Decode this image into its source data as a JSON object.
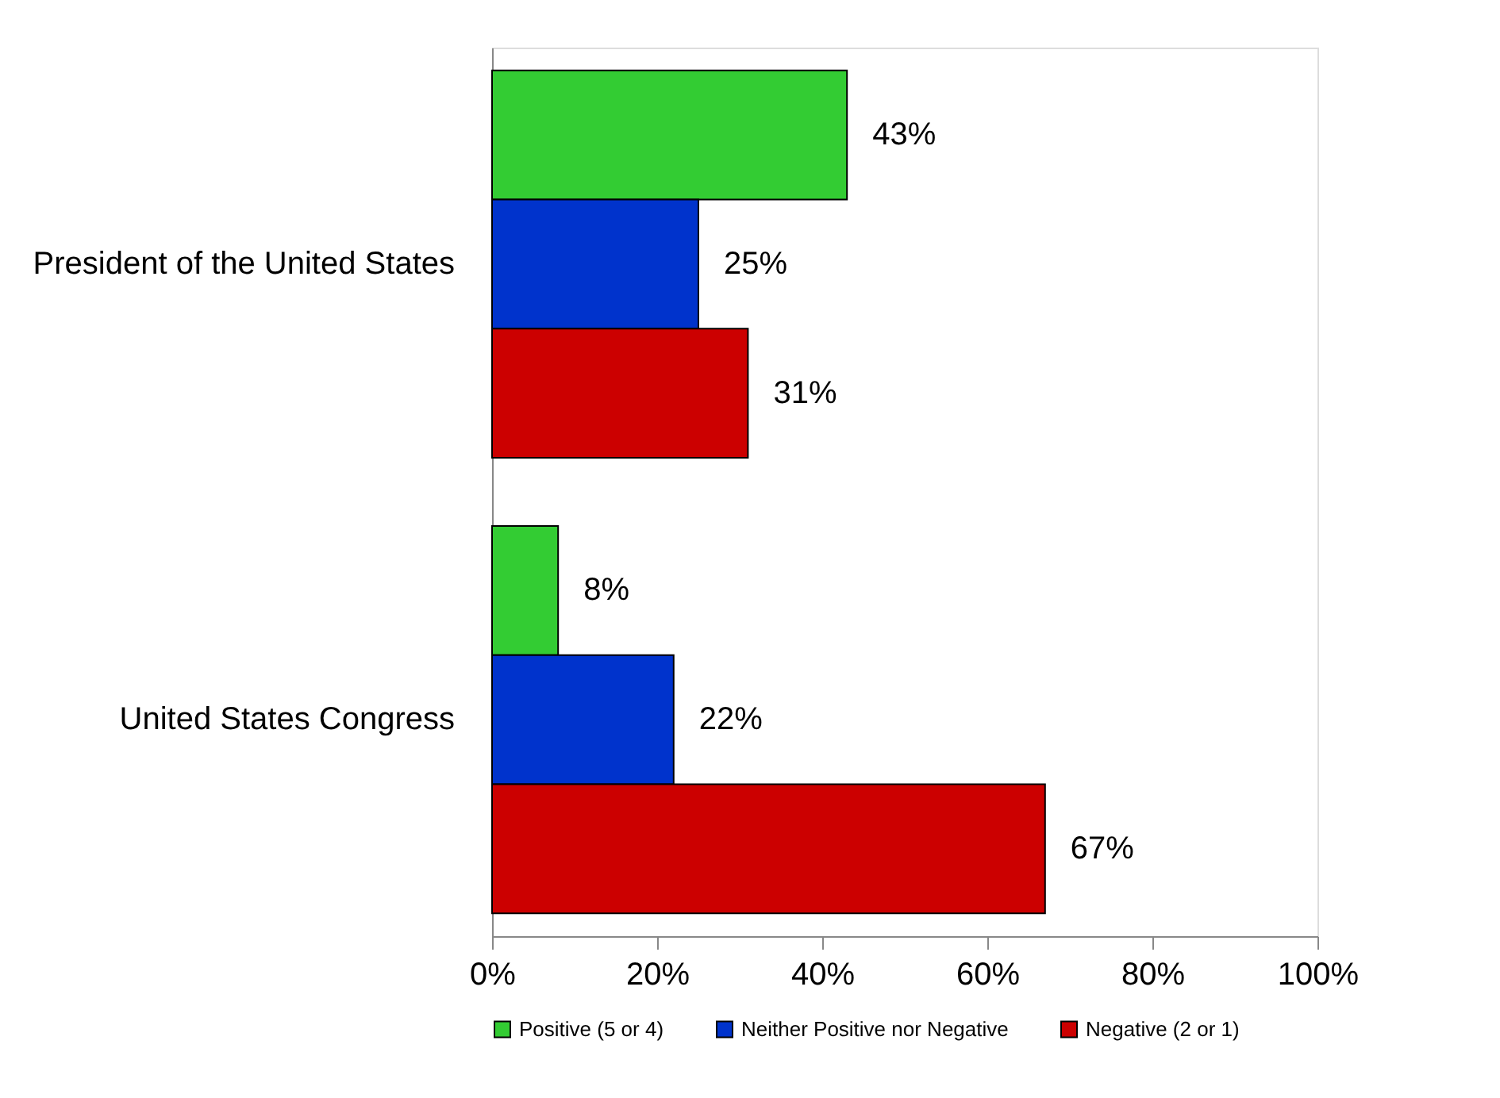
{
  "chart_data": {
    "type": "bar",
    "orientation": "horizontal",
    "categories": [
      "President of the United States",
      "United States Congress"
    ],
    "series": [
      {
        "name": "Positive (5 or 4)",
        "color": "#33cc33",
        "values": [
          43,
          8
        ],
        "value_labels": [
          "43%",
          "8%"
        ]
      },
      {
        "name": "Neither Positive nor Negative",
        "color": "#0033cc",
        "values": [
          25,
          22
        ],
        "value_labels": [
          "25%",
          "22%"
        ]
      },
      {
        "name": "Negative (2 or 1)",
        "color": "#cc0000",
        "values": [
          31,
          67
        ],
        "value_labels": [
          "31%",
          "67%"
        ]
      }
    ],
    "xlim": [
      0,
      100
    ],
    "xticks": [
      {
        "value": 0,
        "label": "0%"
      },
      {
        "value": 20,
        "label": "20%"
      },
      {
        "value": 40,
        "label": "40%"
      },
      {
        "value": 60,
        "label": "60%"
      },
      {
        "value": 80,
        "label": "80%"
      },
      {
        "value": 100,
        "label": "100%"
      }
    ],
    "grid": false,
    "legend": "bottom"
  }
}
